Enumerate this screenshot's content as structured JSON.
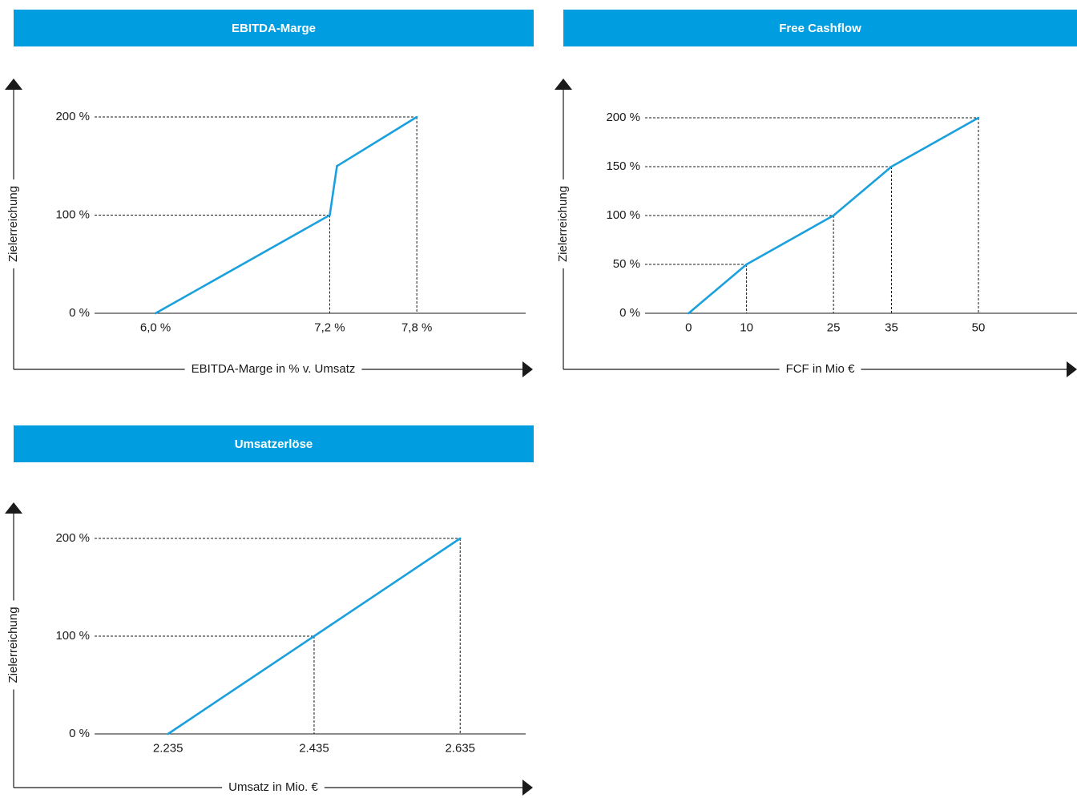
{
  "chart_data": [
    {
      "type": "line",
      "panel_title": "EBITDA-Marge",
      "xlabel": "EBITDA-Marge in % v. Umsatz",
      "ylabel": "Zielerreichung",
      "x_ticks": [
        "6,0 %",
        "7,2 %",
        "7,8 %"
      ],
      "y_ticks": [
        "0 %",
        "100 %",
        "200 %"
      ],
      "x_tick_values": [
        6.0,
        7.2,
        7.8
      ],
      "y_tick_values": [
        0,
        100,
        200
      ],
      "xlim": [
        5.58,
        8.55
      ],
      "ylim": [
        0,
        200
      ],
      "x_unit": "%",
      "y_unit": "%",
      "points": [
        {
          "x": 6.0,
          "y": 0
        },
        {
          "x": 7.2,
          "y": 100
        },
        {
          "x": 7.25,
          "y": 150
        },
        {
          "x": 7.8,
          "y": 200
        }
      ],
      "guides": [
        {
          "x": 7.2,
          "y": 100
        },
        {
          "x": 7.8,
          "y": 200
        }
      ],
      "line_color": "#1aa0dc"
    },
    {
      "type": "line",
      "panel_title": "Free Cashflow",
      "xlabel": "FCF in Mio €",
      "ylabel": "Zielerreichung",
      "x_ticks": [
        "0",
        "10",
        "25",
        "35",
        "50"
      ],
      "y_ticks": [
        "0 %",
        "50 %",
        "100 %",
        "150 %",
        "200 %"
      ],
      "x_tick_values": [
        0,
        10,
        25,
        35,
        50
      ],
      "y_tick_values": [
        0,
        50,
        100,
        150,
        200
      ],
      "xlim": [
        -7.5,
        67
      ],
      "ylim": [
        0,
        200
      ],
      "x_unit": "Mio €",
      "y_unit": "%",
      "points": [
        {
          "x": 0,
          "y": 0
        },
        {
          "x": 10,
          "y": 50
        },
        {
          "x": 25,
          "y": 100
        },
        {
          "x": 35,
          "y": 150
        },
        {
          "x": 50,
          "y": 200
        }
      ],
      "guides": [
        {
          "x": 10,
          "y": 50
        },
        {
          "x": 25,
          "y": 100
        },
        {
          "x": 35,
          "y": 150
        },
        {
          "x": 50,
          "y": 200
        }
      ],
      "line_color": "#1aa0dc"
    },
    {
      "type": "line",
      "panel_title": "Umsatzerlöse",
      "xlabel": "Umsatz in Mio. €",
      "ylabel": "Zielerreichung",
      "x_ticks": [
        "2.235",
        "2.435",
        "2.635"
      ],
      "y_ticks": [
        "0 %",
        "100 %",
        "200 %"
      ],
      "x_tick_values": [
        2235,
        2435,
        2635
      ],
      "y_tick_values": [
        0,
        100,
        200
      ],
      "xlim": [
        2134.4,
        2724.7
      ],
      "ylim": [
        0,
        200
      ],
      "x_unit": "Mio. €",
      "y_unit": "%",
      "points": [
        {
          "x": 2235,
          "y": 0
        },
        {
          "x": 2435,
          "y": 100
        },
        {
          "x": 2635,
          "y": 200
        }
      ],
      "guides": [
        {
          "x": 2435,
          "y": 100
        },
        {
          "x": 2635,
          "y": 200
        }
      ],
      "line_color": "#1aa0dc"
    }
  ]
}
